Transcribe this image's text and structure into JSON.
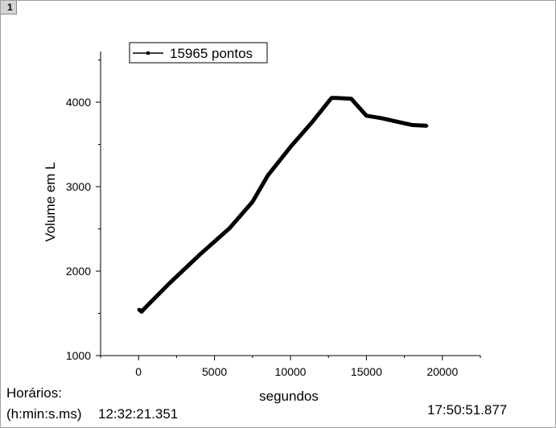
{
  "window": {
    "tab_number": "1"
  },
  "chart_data": {
    "type": "line",
    "xlabel": "segundos",
    "ylabel": "Volume em L",
    "xlim": [
      -2500,
      22500
    ],
    "ylim": [
      1000,
      4600
    ],
    "xticks": [
      0,
      5000,
      10000,
      15000,
      20000
    ],
    "xtick_labels": [
      "0",
      "5000",
      "10000",
      "15000",
      "20000"
    ],
    "yticks": [
      1000,
      2000,
      3000,
      4000
    ],
    "ytick_labels": [
      "1000",
      "2000",
      "3000",
      "4000"
    ],
    "grid": false,
    "legend_position": "top-left",
    "series": [
      {
        "name": "15965 pontos",
        "color": "#000000",
        "x": [
          0,
          200,
          400,
          2000,
          4000,
          6000,
          7500,
          8500,
          10000,
          11500,
          12700,
          13000,
          14000,
          15000,
          16000,
          17000,
          18000,
          19000
        ],
        "y": [
          1550,
          1520,
          1560,
          1850,
          2190,
          2510,
          2820,
          3130,
          3470,
          3780,
          4050,
          4050,
          4040,
          3840,
          3810,
          3770,
          3730,
          3720
        ]
      }
    ]
  },
  "footer": {
    "horarios_label": "Horários:",
    "format_label": "(h:min:s.ms)",
    "start_time": "12:32:21.351",
    "end_time": "17:50:51.877"
  }
}
